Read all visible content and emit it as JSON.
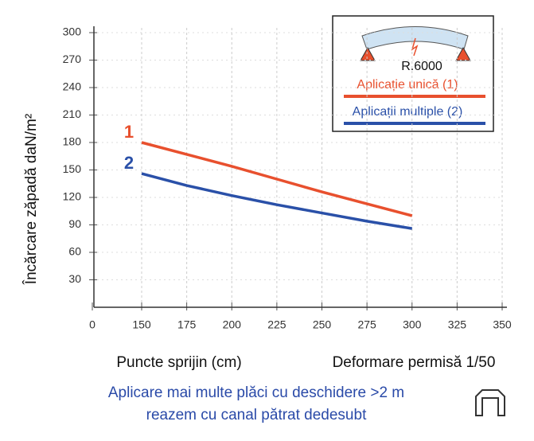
{
  "chart_data": {
    "type": "line",
    "x_label": "Puncte sprijin (cm)",
    "y_label": "Încărcare zăpadă daN/m²",
    "note": "Deformare permisă 1/50",
    "diagram_label": "R.6000",
    "footer": [
      "Aplicare mai multe plăci cu deschidere >2 m",
      "reazem cu canal pătrat dedesubt"
    ],
    "x": [
      150,
      175,
      200,
      225,
      250,
      275,
      300
    ],
    "series": [
      {
        "name": "Aplicație unică (1)",
        "label": "1",
        "color": "#e8502e",
        "values": [
          180,
          167,
          154,
          140,
          126,
          113,
          100
        ]
      },
      {
        "name": "Aplicații multiple (2)",
        "label": "2",
        "color": "#2a50a8",
        "values": [
          146,
          133,
          122,
          112,
          103,
          94,
          86
        ]
      }
    ],
    "xlim": [
      0,
      350
    ],
    "xticks": [
      0,
      150,
      175,
      200,
      225,
      250,
      275,
      300,
      325,
      350
    ],
    "ylim": [
      0,
      300
    ],
    "yticks": [
      30,
      60,
      90,
      120,
      150,
      180,
      210,
      240,
      270,
      300
    ],
    "grid": true
  }
}
